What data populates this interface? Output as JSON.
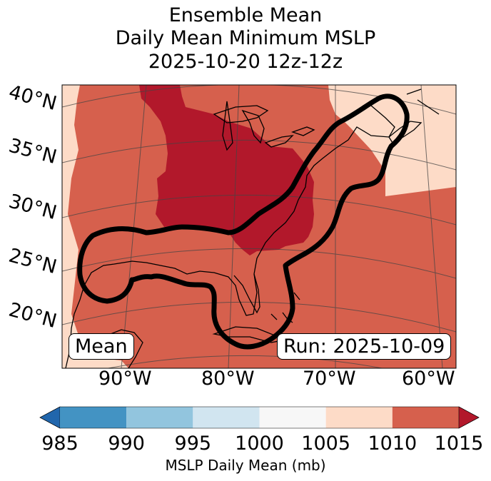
{
  "title": {
    "line1": "Ensemble Mean",
    "line2": "Daily Mean Minimum MSLP",
    "line3": "2025-10-20 12z-12z"
  },
  "map": {
    "lat_labels": [
      "40°N",
      "35°N",
      "30°N",
      "25°N",
      "20°N"
    ],
    "lon_labels": [
      "90°W",
      "80°W",
      "70°W",
      "60°W"
    ],
    "mean_label": "Mean",
    "run_label": "Run: 2025-10-09",
    "colors": {
      "lt1015": "#b2182b",
      "r1010": "#d6604d",
      "r1005": "#fddbc7",
      "coast": "#000000",
      "contour": "#000000"
    }
  },
  "colorbar": {
    "ticks": [
      "985",
      "990",
      "995",
      "1000",
      "1005",
      "1010",
      "1015"
    ],
    "colors": [
      "#2166ac",
      "#4393c3",
      "#92c5de",
      "#d1e5f0",
      "#f7f7f7",
      "#fddbc7",
      "#d6604d",
      "#b2182b"
    ],
    "label": "MSLP Daily Mean (mb)"
  }
}
